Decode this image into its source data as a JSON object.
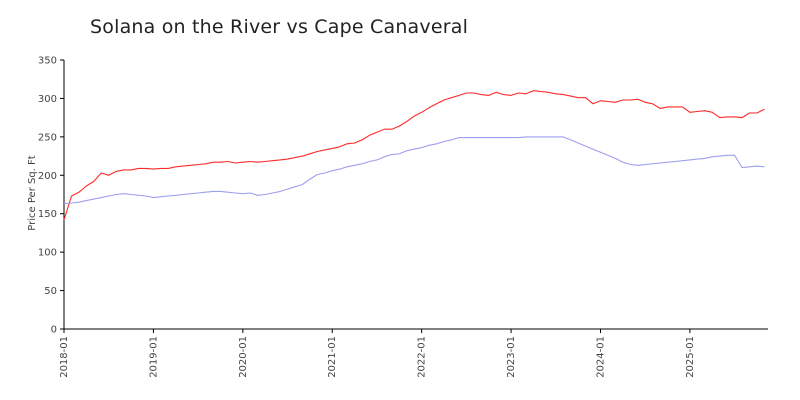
{
  "chart_data": {
    "type": "line",
    "title": "Solana on the River vs Cape Canaveral",
    "ylabel": "Price Per Sq. Ft",
    "xlabel": "",
    "ylim": [
      0,
      350
    ],
    "yticks": [
      0,
      50,
      100,
      150,
      200,
      250,
      300,
      350
    ],
    "xticks": [
      "2018-01",
      "2019-01",
      "2020-01",
      "2021-01",
      "2022-01",
      "2023-01",
      "2024-01",
      "2025-01"
    ],
    "legend": false,
    "grid": false,
    "series": [
      {
        "color": "#ff2a2a",
        "x": [
          "2018-01",
          "2018-02",
          "2018-03",
          "2018-04",
          "2018-05",
          "2018-06",
          "2018-07",
          "2018-08",
          "2018-09",
          "2018-10",
          "2018-11",
          "2018-12",
          "2019-01",
          "2019-02",
          "2019-03",
          "2019-04",
          "2019-05",
          "2019-06",
          "2019-07",
          "2019-08",
          "2019-09",
          "2019-10",
          "2019-11",
          "2019-12",
          "2020-01",
          "2020-02",
          "2020-03",
          "2020-04",
          "2020-05",
          "2020-06",
          "2020-07",
          "2020-08",
          "2020-09",
          "2020-10",
          "2020-11",
          "2020-12",
          "2021-01",
          "2021-02",
          "2021-03",
          "2021-04",
          "2021-05",
          "2021-06",
          "2021-07",
          "2021-08",
          "2021-09",
          "2021-10",
          "2021-11",
          "2021-12",
          "2022-01",
          "2022-02",
          "2022-03",
          "2022-04",
          "2022-05",
          "2022-06",
          "2022-07",
          "2022-08",
          "2022-09",
          "2022-10",
          "2022-11",
          "2022-12",
          "2023-01",
          "2023-02",
          "2023-03",
          "2023-04",
          "2023-05",
          "2023-06",
          "2023-07",
          "2023-08",
          "2023-09",
          "2023-10",
          "2023-11",
          "2023-12",
          "2024-01",
          "2024-02",
          "2024-03",
          "2024-04",
          "2024-05",
          "2024-06",
          "2024-07",
          "2024-08",
          "2024-09",
          "2024-10",
          "2024-11",
          "2024-12",
          "2025-01",
          "2025-02",
          "2025-03",
          "2025-04",
          "2025-05",
          "2025-06",
          "2025-07",
          "2025-08",
          "2025-09",
          "2025-10",
          "2025-11"
        ],
        "values": [
          142,
          173,
          178,
          186,
          192,
          203,
          200,
          205,
          207,
          207,
          209,
          209,
          208,
          209,
          209,
          211,
          212,
          213,
          214,
          215,
          217,
          217,
          218,
          216,
          217,
          218,
          217,
          218,
          219,
          220,
          221,
          223,
          225,
          228,
          231,
          233,
          235,
          237,
          241,
          242,
          246,
          252,
          256,
          260,
          260,
          264,
          270,
          277,
          282,
          288,
          293,
          298,
          301,
          304,
          307,
          307,
          305,
          304,
          308,
          305,
          304,
          307,
          306,
          310,
          309,
          308,
          306,
          305,
          303,
          301,
          301,
          293,
          297,
          296,
          295,
          298,
          298,
          299,
          295,
          293,
          287,
          289,
          289,
          289,
          282,
          283,
          284,
          282,
          275,
          276,
          276,
          275,
          281,
          281,
          286
        ]
      },
      {
        "color": "#9f9ff0",
        "x": [
          "2018-01",
          "2018-02",
          "2018-03",
          "2018-04",
          "2018-05",
          "2018-06",
          "2018-07",
          "2018-08",
          "2018-09",
          "2018-10",
          "2018-11",
          "2018-12",
          "2019-01",
          "2019-02",
          "2019-03",
          "2019-04",
          "2019-05",
          "2019-06",
          "2019-07",
          "2019-08",
          "2019-09",
          "2019-10",
          "2019-11",
          "2019-12",
          "2020-01",
          "2020-02",
          "2020-03",
          "2020-04",
          "2020-05",
          "2020-06",
          "2020-07",
          "2020-08",
          "2020-09",
          "2020-10",
          "2020-11",
          "2020-12",
          "2021-01",
          "2021-02",
          "2021-03",
          "2021-04",
          "2021-05",
          "2021-06",
          "2021-07",
          "2021-08",
          "2021-09",
          "2021-10",
          "2021-11",
          "2021-12",
          "2022-01",
          "2022-02",
          "2022-03",
          "2022-04",
          "2022-05",
          "2022-06",
          "2022-07",
          "2022-08",
          "2022-09",
          "2022-10",
          "2022-11",
          "2022-12",
          "2023-01",
          "2023-02",
          "2023-03",
          "2023-04",
          "2023-05",
          "2023-06",
          "2023-07",
          "2023-08",
          "2023-09",
          "2023-10",
          "2023-11",
          "2023-12",
          "2024-01",
          "2024-02",
          "2024-03",
          "2024-04",
          "2024-05",
          "2024-06",
          "2024-07",
          "2024-08",
          "2024-09",
          "2024-10",
          "2024-11",
          "2024-12",
          "2025-01",
          "2025-02",
          "2025-03",
          "2025-04",
          "2025-05",
          "2025-06",
          "2025-07",
          "2025-08",
          "2025-09",
          "2025-10",
          "2025-11"
        ],
        "values": [
          163,
          164,
          165,
          167,
          169,
          171,
          173,
          175,
          176,
          175,
          174,
          173,
          171,
          172,
          173,
          174,
          175,
          176,
          177,
          178,
          179,
          179,
          178,
          177,
          176,
          177,
          174,
          175,
          177,
          179,
          182,
          185,
          188,
          195,
          201,
          203,
          206,
          208,
          211,
          213,
          215,
          218,
          220,
          224,
          227,
          228,
          232,
          234,
          236,
          239,
          241,
          244,
          246,
          249,
          249,
          249,
          249,
          249,
          249,
          249,
          249,
          249,
          250,
          250,
          250,
          250,
          250,
          250,
          246,
          242,
          238,
          234,
          230,
          226,
          222,
          217,
          214,
          213,
          214,
          215,
          216,
          217,
          218,
          219,
          220,
          221,
          222,
          224,
          225,
          226,
          226,
          210,
          211,
          212,
          211
        ]
      }
    ]
  }
}
